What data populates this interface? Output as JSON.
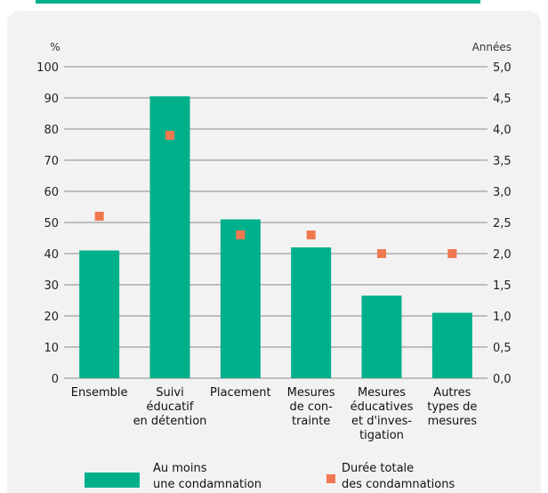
{
  "chart_data": {
    "type": "bar",
    "categories": [
      [
        "Ensemble"
      ],
      [
        "Suivi",
        "éducatif",
        "en détention"
      ],
      [
        "Placement"
      ],
      [
        "Mesures",
        "de con-",
        "trainte"
      ],
      [
        "Mesures",
        "éducatives",
        "et d'inves-",
        "tigation"
      ],
      [
        "Autres",
        "types de",
        "mesures"
      ]
    ],
    "series": [
      {
        "name": "Au moins une condamnation",
        "axis": "left",
        "values": [
          41,
          90.5,
          51,
          42,
          26.5,
          21
        ]
      },
      {
        "name": "Durée totale des condamnations",
        "axis": "right",
        "values": [
          2.6,
          3.9,
          2.3,
          2.3,
          2.0,
          2.0
        ]
      }
    ],
    "y_left": {
      "unit": "%",
      "ylim": [
        0,
        100
      ],
      "ticks": [
        "0",
        "10",
        "20",
        "30",
        "40",
        "50",
        "60",
        "70",
        "80",
        "90",
        "100"
      ]
    },
    "y_right": {
      "unit": "Années",
      "ylim": [
        0,
        5
      ],
      "ticks": [
        "0,0",
        "0,5",
        "1,0",
        "1,5",
        "2,0",
        "2,5",
        "3,0",
        "3,5",
        "4,0",
        "4,5",
        "5,0"
      ]
    },
    "grid": true,
    "legend_position": "bottom",
    "colors": {
      "bars": "#00b08b",
      "markers": "#f07850",
      "grid": "#666666"
    }
  },
  "legend": {
    "bars_label": [
      "Au moins",
      "une condamnation"
    ],
    "markers_label": [
      "Durée totale",
      "des condamnations"
    ]
  }
}
